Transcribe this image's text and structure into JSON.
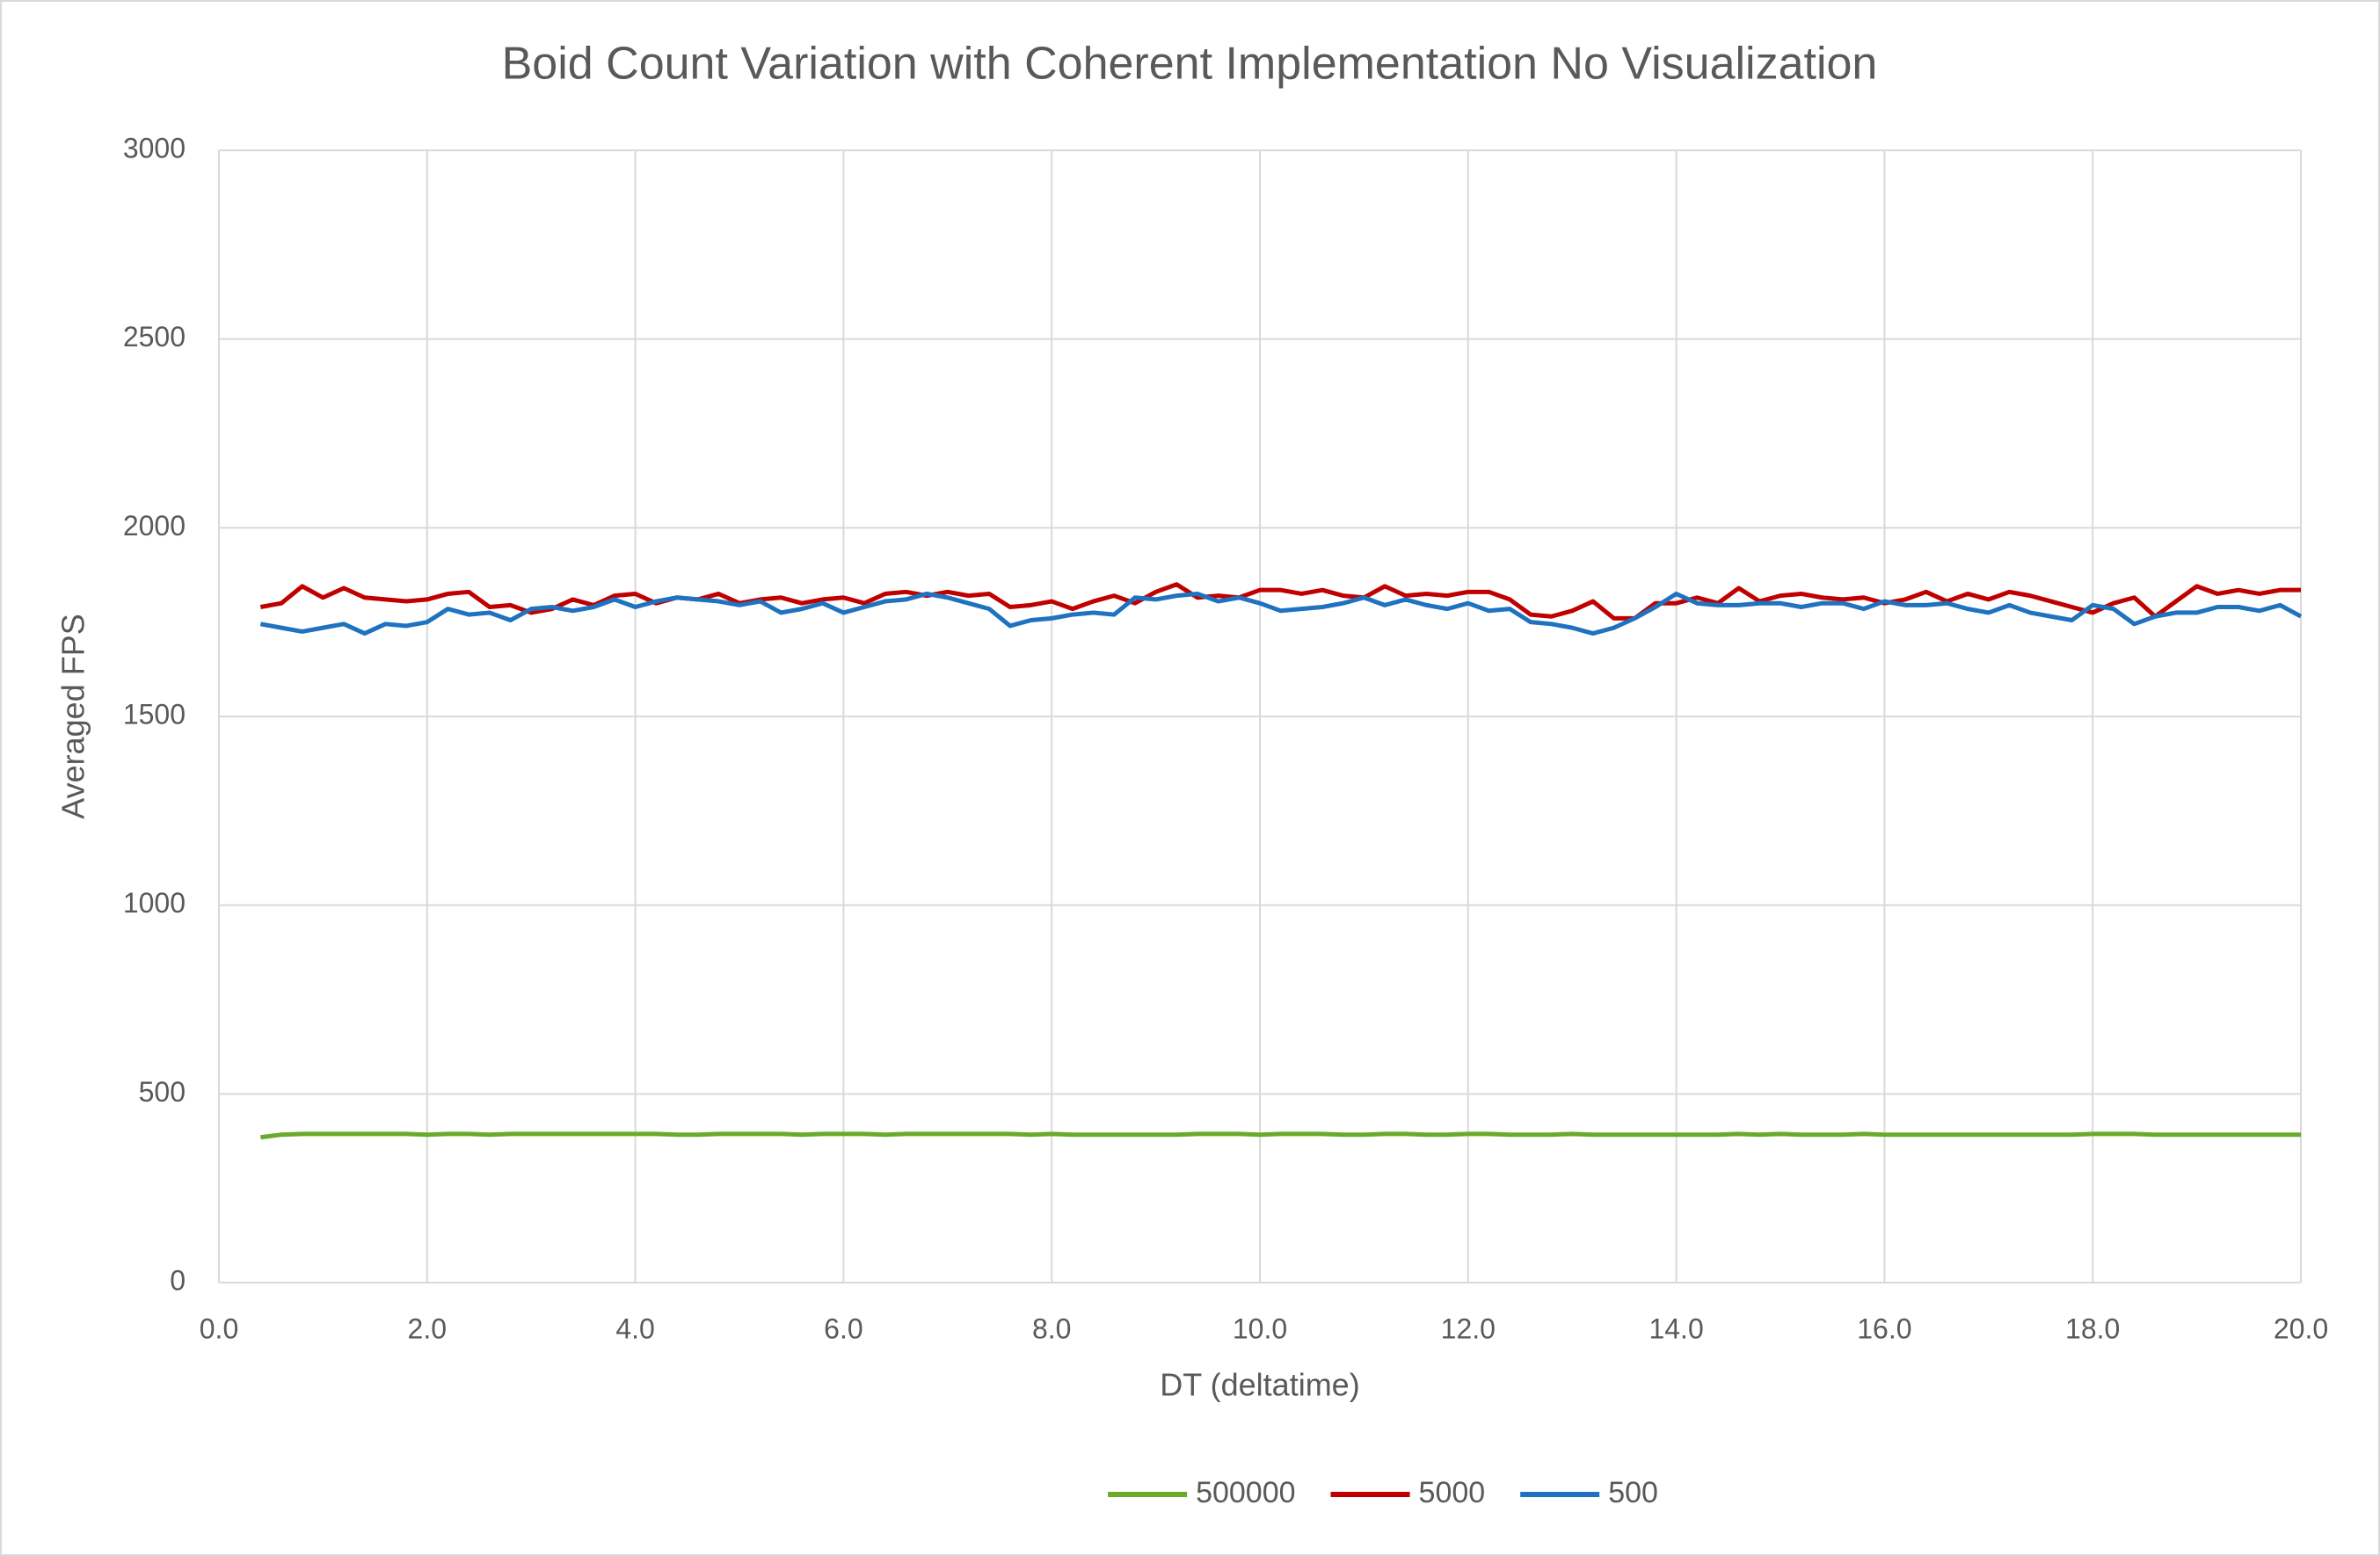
{
  "chart_data": {
    "type": "line",
    "title": "Boid Count Variation with Coherent Implementation No Visualization",
    "x_label": "DT (deltatime)",
    "y_label": "Averaged FPS",
    "x": [
      0.4,
      0.6,
      0.8,
      1.0,
      1.2,
      1.4,
      1.6,
      1.8,
      2.0,
      2.2,
      2.4,
      2.6,
      2.8,
      3.0,
      3.2,
      3.4,
      3.6,
      3.8,
      4.0,
      4.2,
      4.4,
      4.6,
      4.8,
      5.0,
      5.2,
      5.4,
      5.6,
      5.8,
      6.0,
      6.2,
      6.4,
      6.6,
      6.8,
      7.0,
      7.2,
      7.4,
      7.6,
      7.8,
      8.0,
      8.2,
      8.4,
      8.6,
      8.8,
      9.0,
      9.2,
      9.4,
      9.6,
      9.8,
      10.0,
      10.2,
      10.4,
      10.6,
      10.8,
      11.0,
      11.2,
      11.4,
      11.6,
      11.8,
      12.0,
      12.2,
      12.4,
      12.6,
      12.8,
      13.0,
      13.2,
      13.4,
      13.6,
      13.8,
      14.0,
      14.2,
      14.4,
      14.6,
      14.8,
      15.0,
      15.2,
      15.4,
      15.6,
      15.8,
      16.0,
      16.2,
      16.4,
      16.6,
      16.8,
      17.0,
      17.2,
      17.4,
      17.6,
      17.8,
      18.0,
      18.2,
      18.4,
      18.6,
      18.8,
      19.0,
      19.2,
      19.4,
      19.6,
      19.8,
      20.0
    ],
    "series": [
      {
        "name": "500000",
        "color": "#6aaa2a",
        "values": [
          385,
          392,
          394,
          394,
          394,
          394,
          394,
          394,
          392,
          394,
          394,
          392,
          394,
          394,
          394,
          394,
          394,
          394,
          394,
          394,
          392,
          392,
          394,
          394,
          394,
          394,
          392,
          394,
          394,
          394,
          392,
          394,
          394,
          394,
          394,
          394,
          394,
          392,
          394,
          392,
          392,
          392,
          392,
          392,
          392,
          394,
          394,
          394,
          392,
          394,
          394,
          394,
          392,
          392,
          394,
          394,
          392,
          392,
          394,
          394,
          392,
          392,
          392,
          394,
          392,
          392,
          392,
          392,
          392,
          392,
          392,
          394,
          392,
          394,
          392,
          392,
          392,
          394,
          392,
          392,
          392,
          392,
          392,
          392,
          392,
          392,
          392,
          392,
          394,
          394,
          394,
          392,
          392,
          392,
          392,
          392,
          392,
          392,
          392
        ]
      },
      {
        "name": "5000",
        "color": "#c00000",
        "values": [
          1790,
          1800,
          1845,
          1815,
          1840,
          1815,
          1810,
          1805,
          1810,
          1825,
          1830,
          1790,
          1795,
          1775,
          1785,
          1810,
          1795,
          1820,
          1825,
          1800,
          1815,
          1810,
          1825,
          1800,
          1810,
          1815,
          1800,
          1810,
          1815,
          1800,
          1825,
          1830,
          1820,
          1830,
          1820,
          1825,
          1790,
          1795,
          1805,
          1785,
          1805,
          1820,
          1800,
          1830,
          1850,
          1815,
          1820,
          1815,
          1835,
          1835,
          1825,
          1835,
          1820,
          1815,
          1845,
          1820,
          1825,
          1820,
          1830,
          1830,
          1810,
          1770,
          1765,
          1780,
          1805,
          1760,
          1760,
          1800,
          1800,
          1815,
          1800,
          1840,
          1805,
          1820,
          1825,
          1815,
          1810,
          1815,
          1800,
          1810,
          1830,
          1805,
          1825,
          1810,
          1830,
          1820,
          1805,
          1790,
          1775,
          1800,
          1815,
          1765,
          1805,
          1845,
          1825,
          1835,
          1825,
          1835,
          1835
        ]
      },
      {
        "name": "500",
        "color": "#1f72c0",
        "values": [
          1745,
          1735,
          1725,
          1735,
          1745,
          1720,
          1745,
          1740,
          1750,
          1785,
          1770,
          1775,
          1755,
          1785,
          1790,
          1780,
          1790,
          1810,
          1790,
          1805,
          1815,
          1810,
          1805,
          1795,
          1805,
          1775,
          1785,
          1800,
          1775,
          1790,
          1805,
          1810,
          1825,
          1815,
          1800,
          1785,
          1740,
          1755,
          1760,
          1770,
          1775,
          1770,
          1815,
          1810,
          1820,
          1825,
          1805,
          1815,
          1800,
          1780,
          1785,
          1790,
          1800,
          1815,
          1795,
          1810,
          1795,
          1785,
          1800,
          1780,
          1785,
          1750,
          1745,
          1735,
          1720,
          1735,
          1760,
          1790,
          1825,
          1800,
          1795,
          1795,
          1800,
          1800,
          1790,
          1800,
          1800,
          1785,
          1805,
          1795,
          1795,
          1800,
          1785,
          1775,
          1795,
          1775,
          1765,
          1755,
          1795,
          1785,
          1745,
          1765,
          1775,
          1775,
          1790,
          1790,
          1780,
          1795,
          1765
        ]
      }
    ],
    "xlim": [
      0,
      20
    ],
    "xticks": [
      {
        "value": 0,
        "label": "0.0"
      },
      {
        "value": 2,
        "label": "2.0"
      },
      {
        "value": 4,
        "label": "4.0"
      },
      {
        "value": 6,
        "label": "6.0"
      },
      {
        "value": 8,
        "label": "8.0"
      },
      {
        "value": 10,
        "label": "10.0"
      },
      {
        "value": 12,
        "label": "12.0"
      },
      {
        "value": 14,
        "label": "14.0"
      },
      {
        "value": 16,
        "label": "16.0"
      },
      {
        "value": 18,
        "label": "18.0"
      },
      {
        "value": 20,
        "label": "20.0"
      }
    ],
    "ylim": [
      0,
      3000
    ],
    "yticks": [
      0,
      500,
      1000,
      1500,
      2000,
      2500,
      3000
    ],
    "grid": true,
    "legend": "bottom"
  }
}
